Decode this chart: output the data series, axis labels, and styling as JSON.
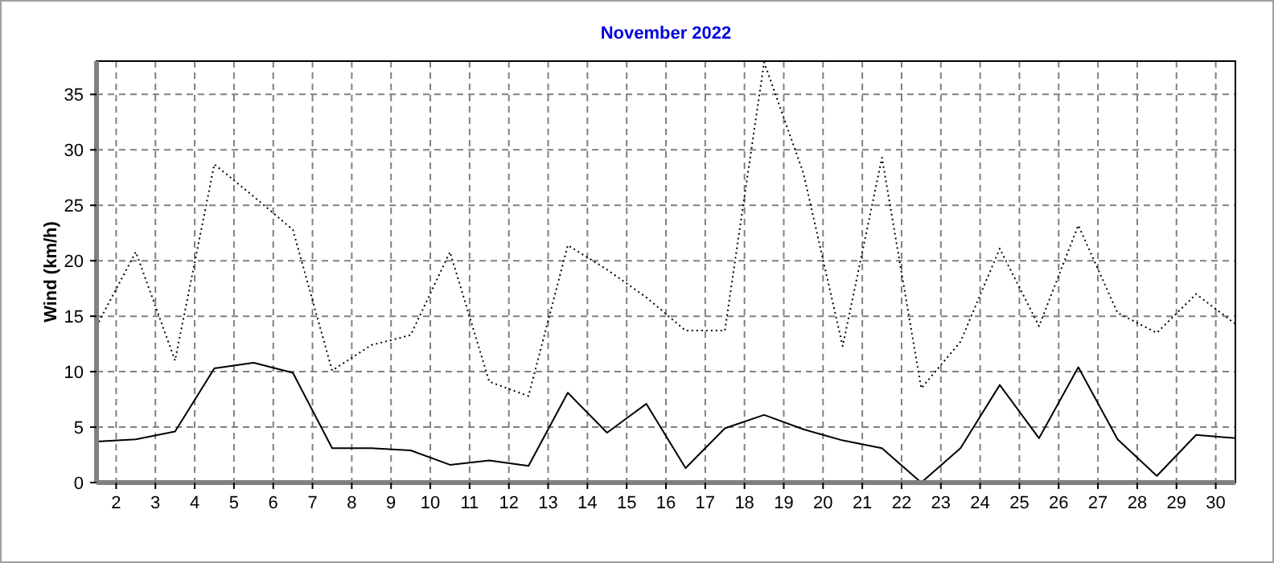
{
  "chart_data": {
    "type": "line",
    "title": "November 2022",
    "ylabel": "Wind  (km/h)",
    "x": [
      1.5,
      2.5,
      3.5,
      4.5,
      5.5,
      6.5,
      7.5,
      8.5,
      9.5,
      10.5,
      11.5,
      12.5,
      13.5,
      14.5,
      15.5,
      16.5,
      17.5,
      18.5,
      19.5,
      20.5,
      21.5,
      22.5,
      23.5,
      24.5,
      25.5,
      26.5,
      27.5,
      28.5,
      29.5,
      30.5
    ],
    "xlim": [
      1.5,
      30.5
    ],
    "xticks": [
      2,
      3,
      4,
      5,
      6,
      7,
      8,
      9,
      10,
      11,
      12,
      13,
      14,
      15,
      16,
      17,
      18,
      19,
      20,
      21,
      22,
      23,
      24,
      25,
      26,
      27,
      28,
      29,
      30
    ],
    "ylim": [
      0,
      38
    ],
    "yticks": [
      0,
      5,
      10,
      15,
      20,
      25,
      30,
      35
    ],
    "grid": true,
    "series": [
      {
        "color": "#000000",
        "line_style": "dotted",
        "values": [
          14.1,
          20.8,
          11.0,
          28.7,
          25.8,
          22.8,
          10.1,
          12.4,
          13.3,
          20.8,
          9.1,
          7.8,
          21.4,
          19.2,
          16.7,
          13.7,
          13.7,
          37.9,
          27.9,
          12.3,
          29.3,
          8.5,
          12.7,
          21.1,
          14.1,
          23.2,
          15.3,
          13.5,
          17.0,
          14.3
        ]
      },
      {
        "color": "#000000",
        "line_style": "solid",
        "values": [
          3.7,
          3.9,
          4.6,
          10.3,
          10.8,
          9.9,
          3.1,
          3.1,
          2.9,
          1.6,
          2.0,
          1.5,
          8.1,
          4.5,
          7.1,
          1.3,
          4.9,
          6.1,
          4.8,
          3.8,
          3.1,
          0,
          3.1,
          8.8,
          4.0,
          10.4,
          3.9,
          0.6,
          4.3,
          4.0
        ]
      }
    ]
  }
}
